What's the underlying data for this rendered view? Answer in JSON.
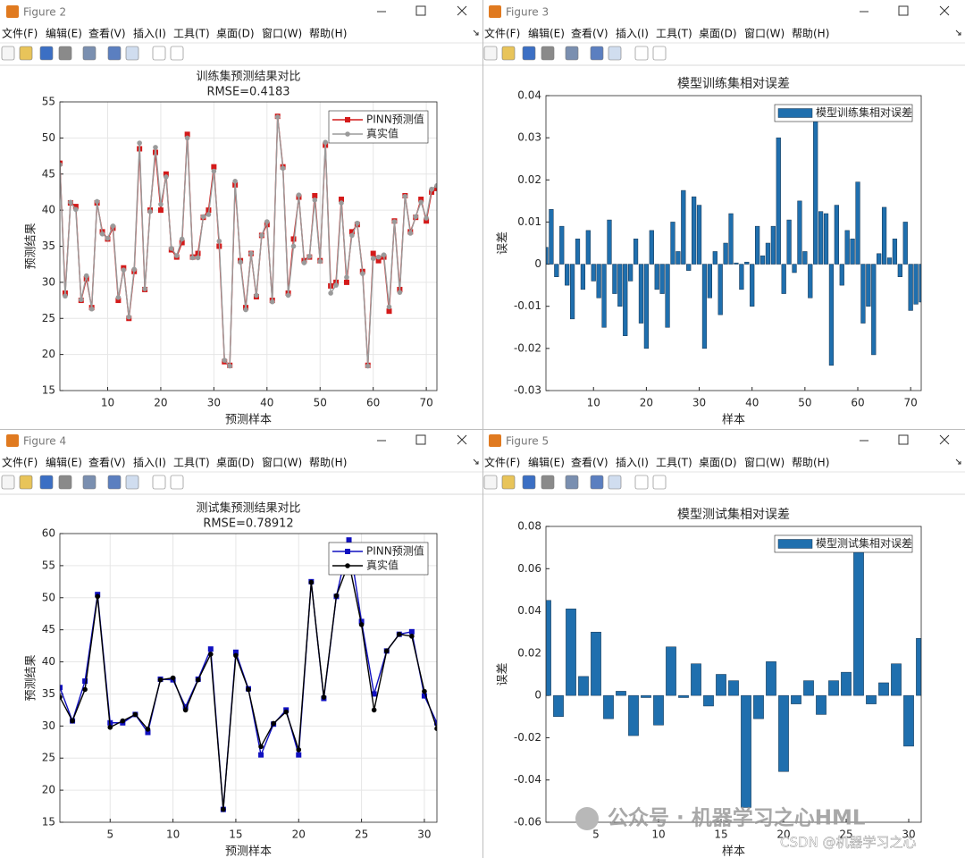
{
  "windows": [
    {
      "title": "Figure 2"
    },
    {
      "title": "Figure 3"
    },
    {
      "title": "Figure 4"
    },
    {
      "title": "Figure 5"
    }
  ],
  "menu": [
    "文件(F)",
    "编辑(E)",
    "查看(V)",
    "插入(I)",
    "工具(T)",
    "桌面(D)",
    "窗口(W)",
    "帮助(H)"
  ],
  "watermarks": [
    "公众号 · 机器学习之心HML",
    "CSDN @机器学习之心"
  ],
  "chart_data": [
    {
      "type": "line",
      "title": "训练集预测结果对比",
      "subtitle": "RMSE=0.4183",
      "xlabel": "预测样本",
      "ylabel": "预测结果",
      "grid": true,
      "legend": "northeast",
      "x": [
        1,
        2,
        3,
        4,
        5,
        6,
        7,
        8,
        9,
        10,
        11,
        12,
        13,
        14,
        15,
        16,
        17,
        18,
        19,
        20,
        21,
        22,
        23,
        24,
        25,
        26,
        27,
        28,
        29,
        30,
        31,
        32,
        33,
        34,
        35,
        36,
        37,
        38,
        39,
        40,
        41,
        42,
        43,
        44,
        45,
        46,
        47,
        48,
        49,
        50,
        51,
        52,
        53,
        54,
        55,
        56,
        57,
        58,
        59,
        60,
        61,
        62,
        63,
        64,
        65,
        66,
        67,
        68,
        69,
        70,
        71,
        72
      ],
      "xlim": [
        1,
        72
      ],
      "xticks": [
        10,
        20,
        30,
        40,
        50,
        60,
        70
      ],
      "ylim": [
        15,
        55
      ],
      "yticks": [
        15,
        20,
        25,
        30,
        35,
        40,
        45,
        50,
        55
      ],
      "series": [
        {
          "name": "PINN预测值",
          "color": "#d41a1a",
          "marker": "square",
          "values": [
            46.5,
            28.5,
            41,
            40.5,
            27.5,
            30.5,
            26.5,
            41,
            37,
            36,
            37.5,
            27.5,
            32,
            25,
            31.5,
            48.5,
            29,
            40,
            48,
            40,
            45,
            34.5,
            33.5,
            35.5,
            50.5,
            33.5,
            34,
            39,
            40,
            46,
            35,
            19,
            18.5,
            43.5,
            33,
            26.5,
            34,
            28,
            36.5,
            38,
            27.5,
            53,
            46,
            28.5,
            36,
            41.8,
            33,
            33.5,
            42,
            33,
            49,
            29.5,
            30,
            41.5,
            30,
            37,
            38,
            31.5,
            18.5,
            34,
            33,
            33.5,
            26,
            38.5,
            29,
            42,
            37,
            39,
            41.5,
            38.5,
            42.5,
            43
          ]
        },
        {
          "name": "真实值",
          "color": "#9a9a9a",
          "marker": "circle",
          "values": [
            46.3,
            28.1,
            41.1,
            40.1,
            27.6,
            30.9,
            26.3,
            41.2,
            36.7,
            36.1,
            37.8,
            27.9,
            31.7,
            25.2,
            31.8,
            49.3,
            29.1,
            39.8,
            48.7,
            40.8,
            44.6,
            34.7,
            33.7,
            36,
            50,
            33.4,
            33.4,
            39.1,
            39.4,
            45.4,
            35.7,
            19.2,
            18.4,
            44,
            32.8,
            26.2,
            34,
            28.2,
            36.5,
            38.4,
            27.3,
            52.9,
            45.8,
            28.2,
            35,
            42.1,
            32.7,
            33.6,
            41.4,
            32.9,
            49.4,
            28.5,
            29.6,
            41,
            30.7,
            36.5,
            38.2,
            31.2,
            18.4,
            33.3,
            33.5,
            33.8,
            26.6,
            38.4,
            28.6,
            41.9,
            36.8,
            39.1,
            41.1,
            38.9,
            42.9,
            43.4
          ]
        }
      ]
    },
    {
      "type": "bar",
      "title": "模型训练集相对误差",
      "xlabel": "样本",
      "ylabel": "误差",
      "grid": false,
      "legend": "northeast",
      "x": [
        1,
        2,
        3,
        4,
        5,
        6,
        7,
        8,
        9,
        10,
        11,
        12,
        13,
        14,
        15,
        16,
        17,
        18,
        19,
        20,
        21,
        22,
        23,
        24,
        25,
        26,
        27,
        28,
        29,
        30,
        31,
        32,
        33,
        34,
        35,
        36,
        37,
        38,
        39,
        40,
        41,
        42,
        43,
        44,
        45,
        46,
        47,
        48,
        49,
        50,
        51,
        52,
        53,
        54,
        55,
        56,
        57,
        58,
        59,
        60,
        61,
        62,
        63,
        64,
        65,
        66,
        67,
        68,
        69,
        70,
        71,
        72
      ],
      "xlim": [
        1,
        72
      ],
      "xticks": [
        10,
        20,
        30,
        40,
        50,
        60,
        70
      ],
      "ylim": [
        -0.03,
        0.04
      ],
      "yticks": [
        -0.03,
        -0.02,
        -0.01,
        0,
        0.01,
        0.02,
        0.03,
        0.04
      ],
      "series": [
        {
          "name": "模型训练集相对误差",
          "color": "#1f6fae",
          "values": [
            0.004,
            0.013,
            -0.003,
            0.009,
            -0.005,
            -0.013,
            0.006,
            -0.006,
            0.008,
            -0.004,
            -0.008,
            -0.015,
            0.0105,
            -0.007,
            -0.01,
            -0.017,
            -0.004,
            0.006,
            -0.014,
            -0.02,
            0.008,
            -0.006,
            -0.007,
            -0.015,
            0.01,
            0.003,
            0.0175,
            -0.0015,
            0.016,
            0.014,
            -0.02,
            -0.008,
            0.003,
            -0.012,
            0.005,
            0.012,
            0.0003,
            -0.006,
            0.0005,
            -0.01,
            0.009,
            0.002,
            0.005,
            0.009,
            0.03,
            -0.007,
            0.0105,
            -0.002,
            0.015,
            0.003,
            -0.008,
            0.035,
            0.0125,
            0.012,
            -0.024,
            0.014,
            -0.005,
            0.008,
            0.006,
            0.0195,
            -0.014,
            -0.01,
            -0.0215,
            0.0025,
            0.0135,
            0.0015,
            0.006,
            -0.003,
            0.01,
            -0.011,
            -0.0095,
            -0.009
          ]
        }
      ]
    },
    {
      "type": "line",
      "title": "测试集预测结果对比",
      "subtitle": "RMSE=0.78912",
      "xlabel": "预测样本",
      "ylabel": "预测结果",
      "grid": true,
      "legend": "northeast",
      "x": [
        1,
        2,
        3,
        4,
        5,
        6,
        7,
        8,
        9,
        10,
        11,
        12,
        13,
        14,
        15,
        16,
        17,
        18,
        19,
        20,
        21,
        22,
        23,
        24,
        25,
        26,
        27,
        28,
        29,
        30,
        31
      ],
      "xlim": [
        1,
        31
      ],
      "xticks": [
        5,
        10,
        15,
        20,
        25,
        30
      ],
      "ylim": [
        15,
        60
      ],
      "yticks": [
        15,
        20,
        25,
        30,
        35,
        40,
        45,
        50,
        55,
        60
      ],
      "series": [
        {
          "name": "PINN预测值",
          "color": "#1010c0",
          "marker": "square",
          "values": [
            36,
            30.8,
            37,
            50.5,
            30.5,
            30.5,
            31.8,
            29,
            37.3,
            37.2,
            33,
            37.3,
            42,
            17,
            41.5,
            35.8,
            25.5,
            30.3,
            32.5,
            25.5,
            52.5,
            34.3,
            50.2,
            59,
            46.3,
            35,
            41.7,
            44.3,
            44.7,
            34.7,
            30.5
          ]
        },
        {
          "name": "真实值",
          "color": "#000000",
          "marker": "circle",
          "values": [
            34.5,
            30.8,
            35.7,
            50.2,
            29.8,
            30.8,
            31.8,
            29.5,
            37.2,
            37.5,
            32.5,
            37.2,
            41.2,
            17,
            41,
            35.7,
            26.8,
            30.4,
            32.2,
            26.3,
            52.4,
            34.5,
            50.3,
            55.5,
            45.8,
            32.5,
            41.7,
            44.3,
            44,
            35.4,
            29.6
          ]
        }
      ]
    },
    {
      "type": "bar",
      "title": "模型测试集相对误差",
      "xlabel": "样本",
      "ylabel": "误差",
      "grid": false,
      "legend": "northeast",
      "x": [
        1,
        2,
        3,
        4,
        5,
        6,
        7,
        8,
        9,
        10,
        11,
        12,
        13,
        14,
        15,
        16,
        17,
        18,
        19,
        20,
        21,
        22,
        23,
        24,
        25,
        26,
        27,
        28,
        29,
        30,
        31
      ],
      "xlim": [
        1,
        31
      ],
      "xticks": [
        5,
        10,
        15,
        20,
        25,
        30
      ],
      "ylim": [
        -0.06,
        0.08
      ],
      "yticks": [
        -0.06,
        -0.04,
        -0.02,
        0,
        0.02,
        0.04,
        0.06,
        0.08
      ],
      "series": [
        {
          "name": "模型测试集相对误差",
          "color": "#1f6fae",
          "values": [
            0.045,
            -0.01,
            0.041,
            0.009,
            0.03,
            -0.011,
            0.002,
            -0.019,
            -0.001,
            -0.014,
            0.023,
            -0.001,
            0.015,
            -0.005,
            0.01,
            0.007,
            -0.053,
            -0.011,
            0.016,
            -0.036,
            -0.004,
            0.007,
            -0.009,
            0.007,
            0.011,
            0.069,
            -0.004,
            0.006,
            0.015,
            -0.024,
            0.027
          ]
        }
      ]
    }
  ]
}
